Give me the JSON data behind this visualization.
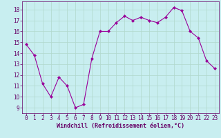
{
  "x": [
    0,
    1,
    2,
    3,
    4,
    5,
    6,
    7,
    8,
    9,
    10,
    11,
    12,
    13,
    14,
    15,
    16,
    17,
    18,
    19,
    20,
    21,
    22,
    23
  ],
  "y": [
    14.8,
    13.8,
    11.2,
    10.0,
    11.8,
    11.0,
    9.0,
    9.3,
    13.5,
    16.0,
    16.0,
    16.8,
    17.4,
    17.0,
    17.3,
    17.0,
    16.8,
    17.3,
    18.2,
    17.9,
    16.0,
    15.4,
    13.3,
    12.6
  ],
  "line_color": "#990099",
  "marker": "D",
  "marker_size": 2.0,
  "bg_color": "#c8eef0",
  "grid_color": "#b0d8cc",
  "xlabel": "Windchill (Refroidissement éolien,°C)",
  "xlabel_color": "#660066",
  "tick_color": "#660066",
  "spine_color": "#660066",
  "xlim": [
    -0.5,
    23.5
  ],
  "ylim": [
    8.5,
    18.75
  ],
  "yticks": [
    9,
    10,
    11,
    12,
    13,
    14,
    15,
    16,
    17,
    18
  ],
  "xticks": [
    0,
    1,
    2,
    3,
    4,
    5,
    6,
    7,
    8,
    9,
    10,
    11,
    12,
    13,
    14,
    15,
    16,
    17,
    18,
    19,
    20,
    21,
    22,
    23
  ],
  "tick_font_size": 5.5,
  "label_font_size": 6.0,
  "line_width": 0.8
}
